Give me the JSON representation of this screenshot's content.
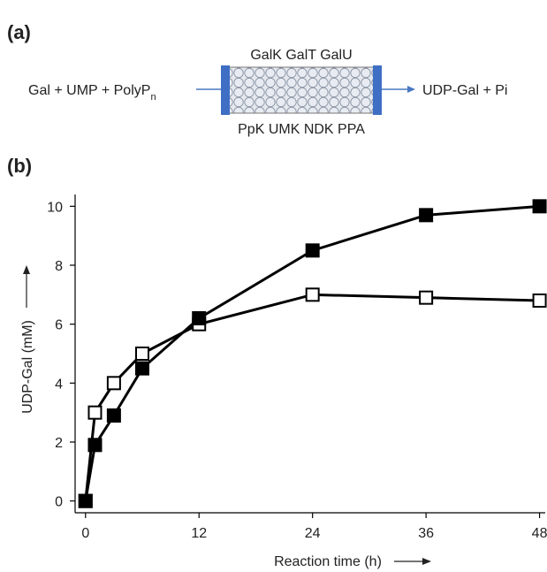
{
  "panel_a": {
    "label": "(a)",
    "inputs": "Gal + UMP + PolyP",
    "inputs_subscript": "n",
    "top_enzymes": "GalK GalT GalU",
    "bottom_enzymes": "PpK UMK NDK PPA",
    "outputs": "UDP-Gal + Pi"
  },
  "chart_data": {
    "type": "line",
    "label": "(b)",
    "y_label": "UDP-Gal (mM)",
    "x_label": "Reaction time (h)",
    "x": [
      0,
      1,
      3,
      6,
      12,
      24,
      36,
      48
    ],
    "series": [
      {
        "color": "#ffffff",
        "values": [
          0,
          3,
          4,
          5,
          6,
          7,
          6.9,
          6.8
        ]
      },
      {
        "color": "#000000",
        "values": [
          0,
          1.9,
          2.9,
          4.5,
          6.2,
          8.5,
          9.7,
          10
        ]
      }
    ],
    "xlim": [
      -1.1,
      48.6
    ],
    "ylim": [
      -0.4,
      10.4
    ],
    "xticks": [
      0,
      12,
      24,
      36,
      48
    ],
    "yticks": [
      0,
      2,
      4,
      6,
      8,
      10
    ],
    "grid": false
  }
}
